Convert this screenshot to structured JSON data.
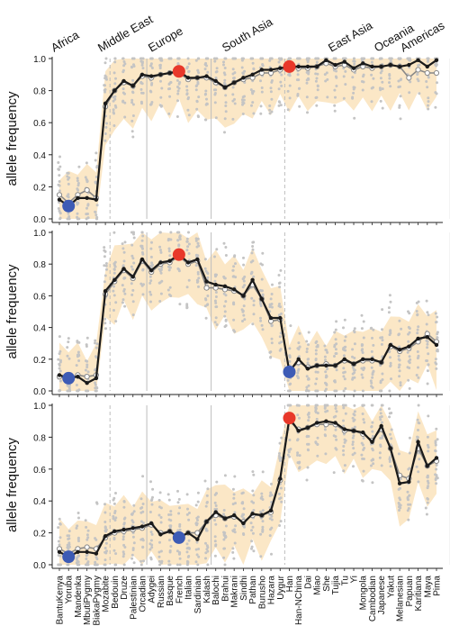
{
  "chart_data": {
    "type": "line",
    "ylabel": "allele frequency",
    "yticks": [
      "0.0",
      "0.2",
      "0.4",
      "0.6",
      "0.8",
      "1.0"
    ],
    "ylim": [
      0,
      1
    ],
    "regions": [
      "Africa",
      "Middle East",
      "Europe",
      "South Asia",
      "East Asia",
      "Oceania",
      "Americas"
    ],
    "region_boundaries_after_index": [
      5,
      9,
      16,
      24,
      42,
      44
    ],
    "populations": [
      "BantuKenya",
      "Yoruba",
      "Mandenka",
      "MbutiPygmy",
      "BiakaPygmy",
      "Mozabite",
      "Bedouin",
      "Druze",
      "Palestinian",
      "Orcadian",
      "Adygei",
      "Russian",
      "Basque",
      "French",
      "Italian",
      "Sardinian",
      "Kalash",
      "Balochi",
      "Brahui",
      "Makrani",
      "Sindhi",
      "Pathan",
      "Burusho",
      "Hazara",
      "Uygur",
      "Han",
      "Han-NChina",
      "Dai",
      "Miao",
      "She",
      "Tujia",
      "Tu",
      "Yi",
      "Mongola",
      "Cambodian",
      "Japanese",
      "Yakut",
      "Melanesian",
      "Papuan",
      "Karitiana",
      "Maya",
      "Pima"
    ],
    "series": [
      {
        "values": [
          0.12,
          0.08,
          0.13,
          0.13,
          0.12,
          0.72,
          0.8,
          0.86,
          0.83,
          0.9,
          0.89,
          0.9,
          0.91,
          0.92,
          0.88,
          0.88,
          0.89,
          0.86,
          0.82,
          0.85,
          0.88,
          0.9,
          0.93,
          0.93,
          0.94,
          0.95,
          0.95,
          0.95,
          0.95,
          0.99,
          0.96,
          0.98,
          0.94,
          0.97,
          0.95,
          0.95,
          0.96,
          0.95,
          0.96,
          0.99,
          0.95,
          0.99
        ],
        "model_values": [
          0.15,
          0.1,
          0.15,
          0.18,
          0.13,
          0.7,
          0.8,
          0.85,
          0.83,
          0.89,
          0.88,
          0.9,
          0.91,
          0.91,
          0.87,
          0.88,
          0.88,
          0.85,
          0.82,
          0.85,
          0.87,
          0.88,
          0.91,
          0.91,
          0.93,
          0.94,
          0.94,
          0.94,
          0.95,
          0.97,
          0.95,
          0.96,
          0.93,
          0.95,
          0.94,
          0.95,
          0.96,
          0.95,
          0.88,
          0.93,
          0.91,
          0.91
        ],
        "highlight_red": [
          13,
          25
        ],
        "highlight_blue": [
          1
        ]
      },
      {
        "values": [
          0.1,
          0.08,
          0.09,
          0.05,
          0.08,
          0.63,
          0.7,
          0.77,
          0.72,
          0.83,
          0.76,
          0.81,
          0.82,
          0.86,
          0.81,
          0.83,
          0.69,
          0.67,
          0.66,
          0.64,
          0.6,
          0.7,
          0.58,
          0.46,
          0.46,
          0.12,
          0.2,
          0.14,
          0.16,
          0.16,
          0.16,
          0.2,
          0.17,
          0.2,
          0.2,
          0.18,
          0.29,
          0.26,
          0.28,
          0.33,
          0.34,
          0.29
        ],
        "model_values": [
          0.09,
          0.08,
          0.1,
          0.09,
          0.1,
          0.61,
          0.69,
          0.76,
          0.71,
          0.82,
          0.75,
          0.8,
          0.81,
          0.85,
          0.8,
          0.82,
          0.65,
          0.65,
          0.64,
          0.63,
          0.6,
          0.67,
          0.58,
          0.44,
          0.45,
          0.13,
          0.18,
          0.15,
          0.16,
          0.17,
          0.16,
          0.19,
          0.17,
          0.19,
          0.19,
          0.18,
          0.28,
          0.25,
          0.27,
          0.31,
          0.36,
          0.31
        ],
        "highlight_red": [
          13
        ],
        "highlight_blue": [
          1,
          25
        ]
      },
      {
        "values": [
          0.08,
          0.05,
          0.08,
          0.08,
          0.07,
          0.18,
          0.21,
          0.22,
          0.23,
          0.24,
          0.26,
          0.19,
          0.21,
          0.17,
          0.2,
          0.16,
          0.27,
          0.33,
          0.29,
          0.31,
          0.26,
          0.32,
          0.31,
          0.34,
          0.54,
          0.92,
          0.84,
          0.86,
          0.89,
          0.9,
          0.89,
          0.85,
          0.84,
          0.83,
          0.77,
          0.87,
          0.73,
          0.51,
          0.52,
          0.77,
          0.62,
          0.67
        ],
        "model_values": [
          0.1,
          0.07,
          0.1,
          0.11,
          0.1,
          0.17,
          0.2,
          0.21,
          0.22,
          0.23,
          0.25,
          0.2,
          0.21,
          0.18,
          0.2,
          0.2,
          0.27,
          0.31,
          0.29,
          0.3,
          0.27,
          0.31,
          0.31,
          0.33,
          0.53,
          0.9,
          0.85,
          0.86,
          0.88,
          0.88,
          0.88,
          0.84,
          0.84,
          0.82,
          0.78,
          0.85,
          0.73,
          0.56,
          0.54,
          0.73,
          0.62,
          0.65
        ],
        "highlight_red": [
          25
        ],
        "highlight_blue": [
          1,
          13
        ]
      }
    ],
    "colors": {
      "observed_line": "#1a1a1a",
      "model_line": "#888888",
      "sample_dots": "#c4c4c4",
      "band": "#fbe7c6",
      "highlight_red": "#e8382a",
      "highlight_blue": "#3d5bb5"
    }
  }
}
